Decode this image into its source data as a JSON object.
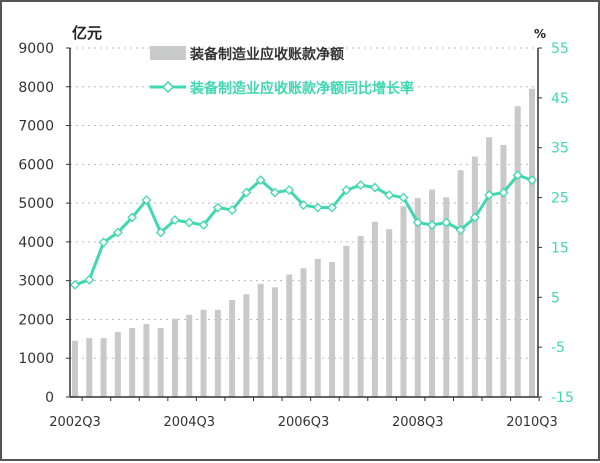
{
  "chart_data": {
    "type": "bar+line",
    "left_unit": "亿元",
    "right_unit": "%",
    "categories": [
      "2002Q3",
      "2002Q4",
      "2003Q1",
      "2003Q2",
      "2003Q3",
      "2003Q4",
      "2004Q1",
      "2004Q2",
      "2004Q3",
      "2004Q4",
      "2005Q1",
      "2005Q2",
      "2005Q3",
      "2005Q4",
      "2006Q1",
      "2006Q2",
      "2006Q3",
      "2006Q4",
      "2007Q1",
      "2007Q2",
      "2007Q3",
      "2007Q4",
      "2008Q1",
      "2008Q2",
      "2008Q3",
      "2008Q4",
      "2009Q1",
      "2009Q2",
      "2009Q3",
      "2009Q4",
      "2010Q1",
      "2010Q2",
      "2010Q3"
    ],
    "x_tick_labels": [
      "2002Q3",
      "2004Q3",
      "2006Q3",
      "2008Q3",
      "2010Q3"
    ],
    "left_axis": {
      "min": 0,
      "max": 9000,
      "ticks": [
        "0",
        "1000",
        "2000",
        "3000",
        "4000",
        "5000",
        "6000",
        "7000",
        "8000",
        "9000"
      ]
    },
    "right_axis": {
      "min": -15,
      "max": 55,
      "ticks": [
        "-15",
        "-5",
        "5",
        "15",
        "25",
        "35",
        "45",
        "55"
      ]
    },
    "series": [
      {
        "name": "装备制造业应收账款净额",
        "type": "bar",
        "axis": "left",
        "color": "#c8cac9",
        "values": [
          1450,
          1520,
          1520,
          1680,
          1780,
          1880,
          1780,
          2020,
          2120,
          2250,
          2250,
          2500,
          2650,
          2920,
          2830,
          3160,
          3320,
          3560,
          3480,
          3900,
          4150,
          4520,
          4330,
          4920,
          5130,
          5350,
          5150,
          5850,
          6200,
          6700,
          6500,
          7500,
          7950
        ]
      },
      {
        "name": "装备制造业应收账款净额同比增长率",
        "type": "line",
        "axis": "right",
        "color": "#3fd8b0",
        "values": [
          7.5,
          8.5,
          16,
          18,
          21,
          24.5,
          18,
          20.5,
          20,
          19.5,
          23,
          22.5,
          26,
          28.5,
          26,
          26.5,
          23.5,
          23,
          23,
          26.5,
          27.5,
          27,
          25.5,
          25,
          20,
          19.5,
          20,
          18.5,
          21,
          25.5,
          26,
          29.5,
          28.5
        ]
      }
    ],
    "grid": "dotted horizontal",
    "legend": "top"
  }
}
